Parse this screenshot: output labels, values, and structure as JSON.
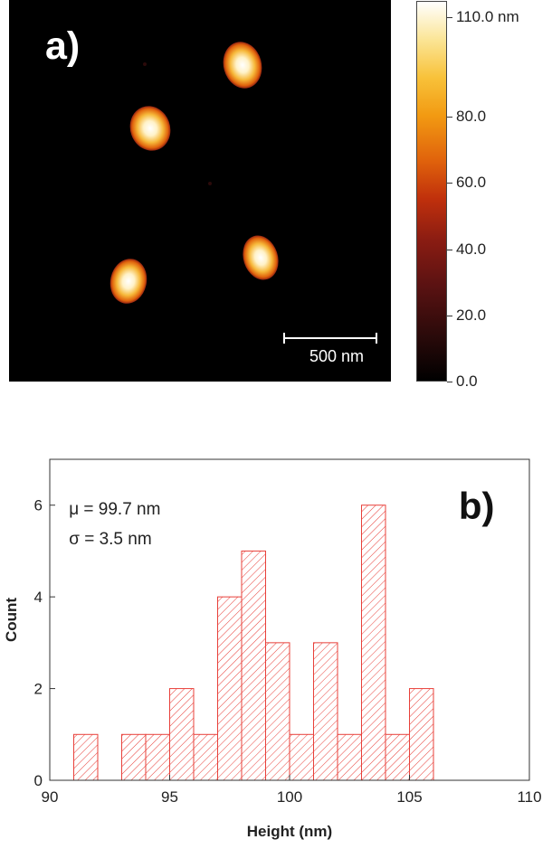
{
  "afm_image": {
    "panel_label": "a)",
    "scale_bar_label": "500 nm",
    "colorbar": {
      "ticks": [
        "110.0 nm",
        "80.0",
        "60.0",
        "40.0",
        "20.0",
        "0.0"
      ],
      "tick_values": [
        110,
        80,
        60,
        40,
        20,
        0
      ],
      "range": [
        0,
        115
      ],
      "colors": {
        "low": "#000000",
        "mid": "#c0300c",
        "high": "#ffffff"
      }
    }
  },
  "chart_data": {
    "type": "bar",
    "panel_label": "b)",
    "title": "",
    "xlabel": "Height (nm)",
    "ylabel": "Count",
    "xlim": [
      90,
      110
    ],
    "ylim": [
      0,
      7
    ],
    "x_ticks": [
      90,
      95,
      100,
      105,
      110
    ],
    "y_ticks": [
      0,
      2,
      4,
      6
    ],
    "bin_width": 1,
    "bin_starts": [
      91,
      93,
      94,
      95,
      96,
      97,
      98,
      99,
      100,
      101,
      102,
      103,
      104,
      105
    ],
    "values": [
      1,
      1,
      1,
      2,
      1,
      4,
      5,
      3,
      1,
      3,
      1,
      6,
      1,
      2
    ],
    "annotations": [
      "μ = 99.7 nm",
      "σ = 3.5 nm"
    ],
    "grid": false,
    "bar_fill": "hatched",
    "bar_color": "#e8403a"
  }
}
